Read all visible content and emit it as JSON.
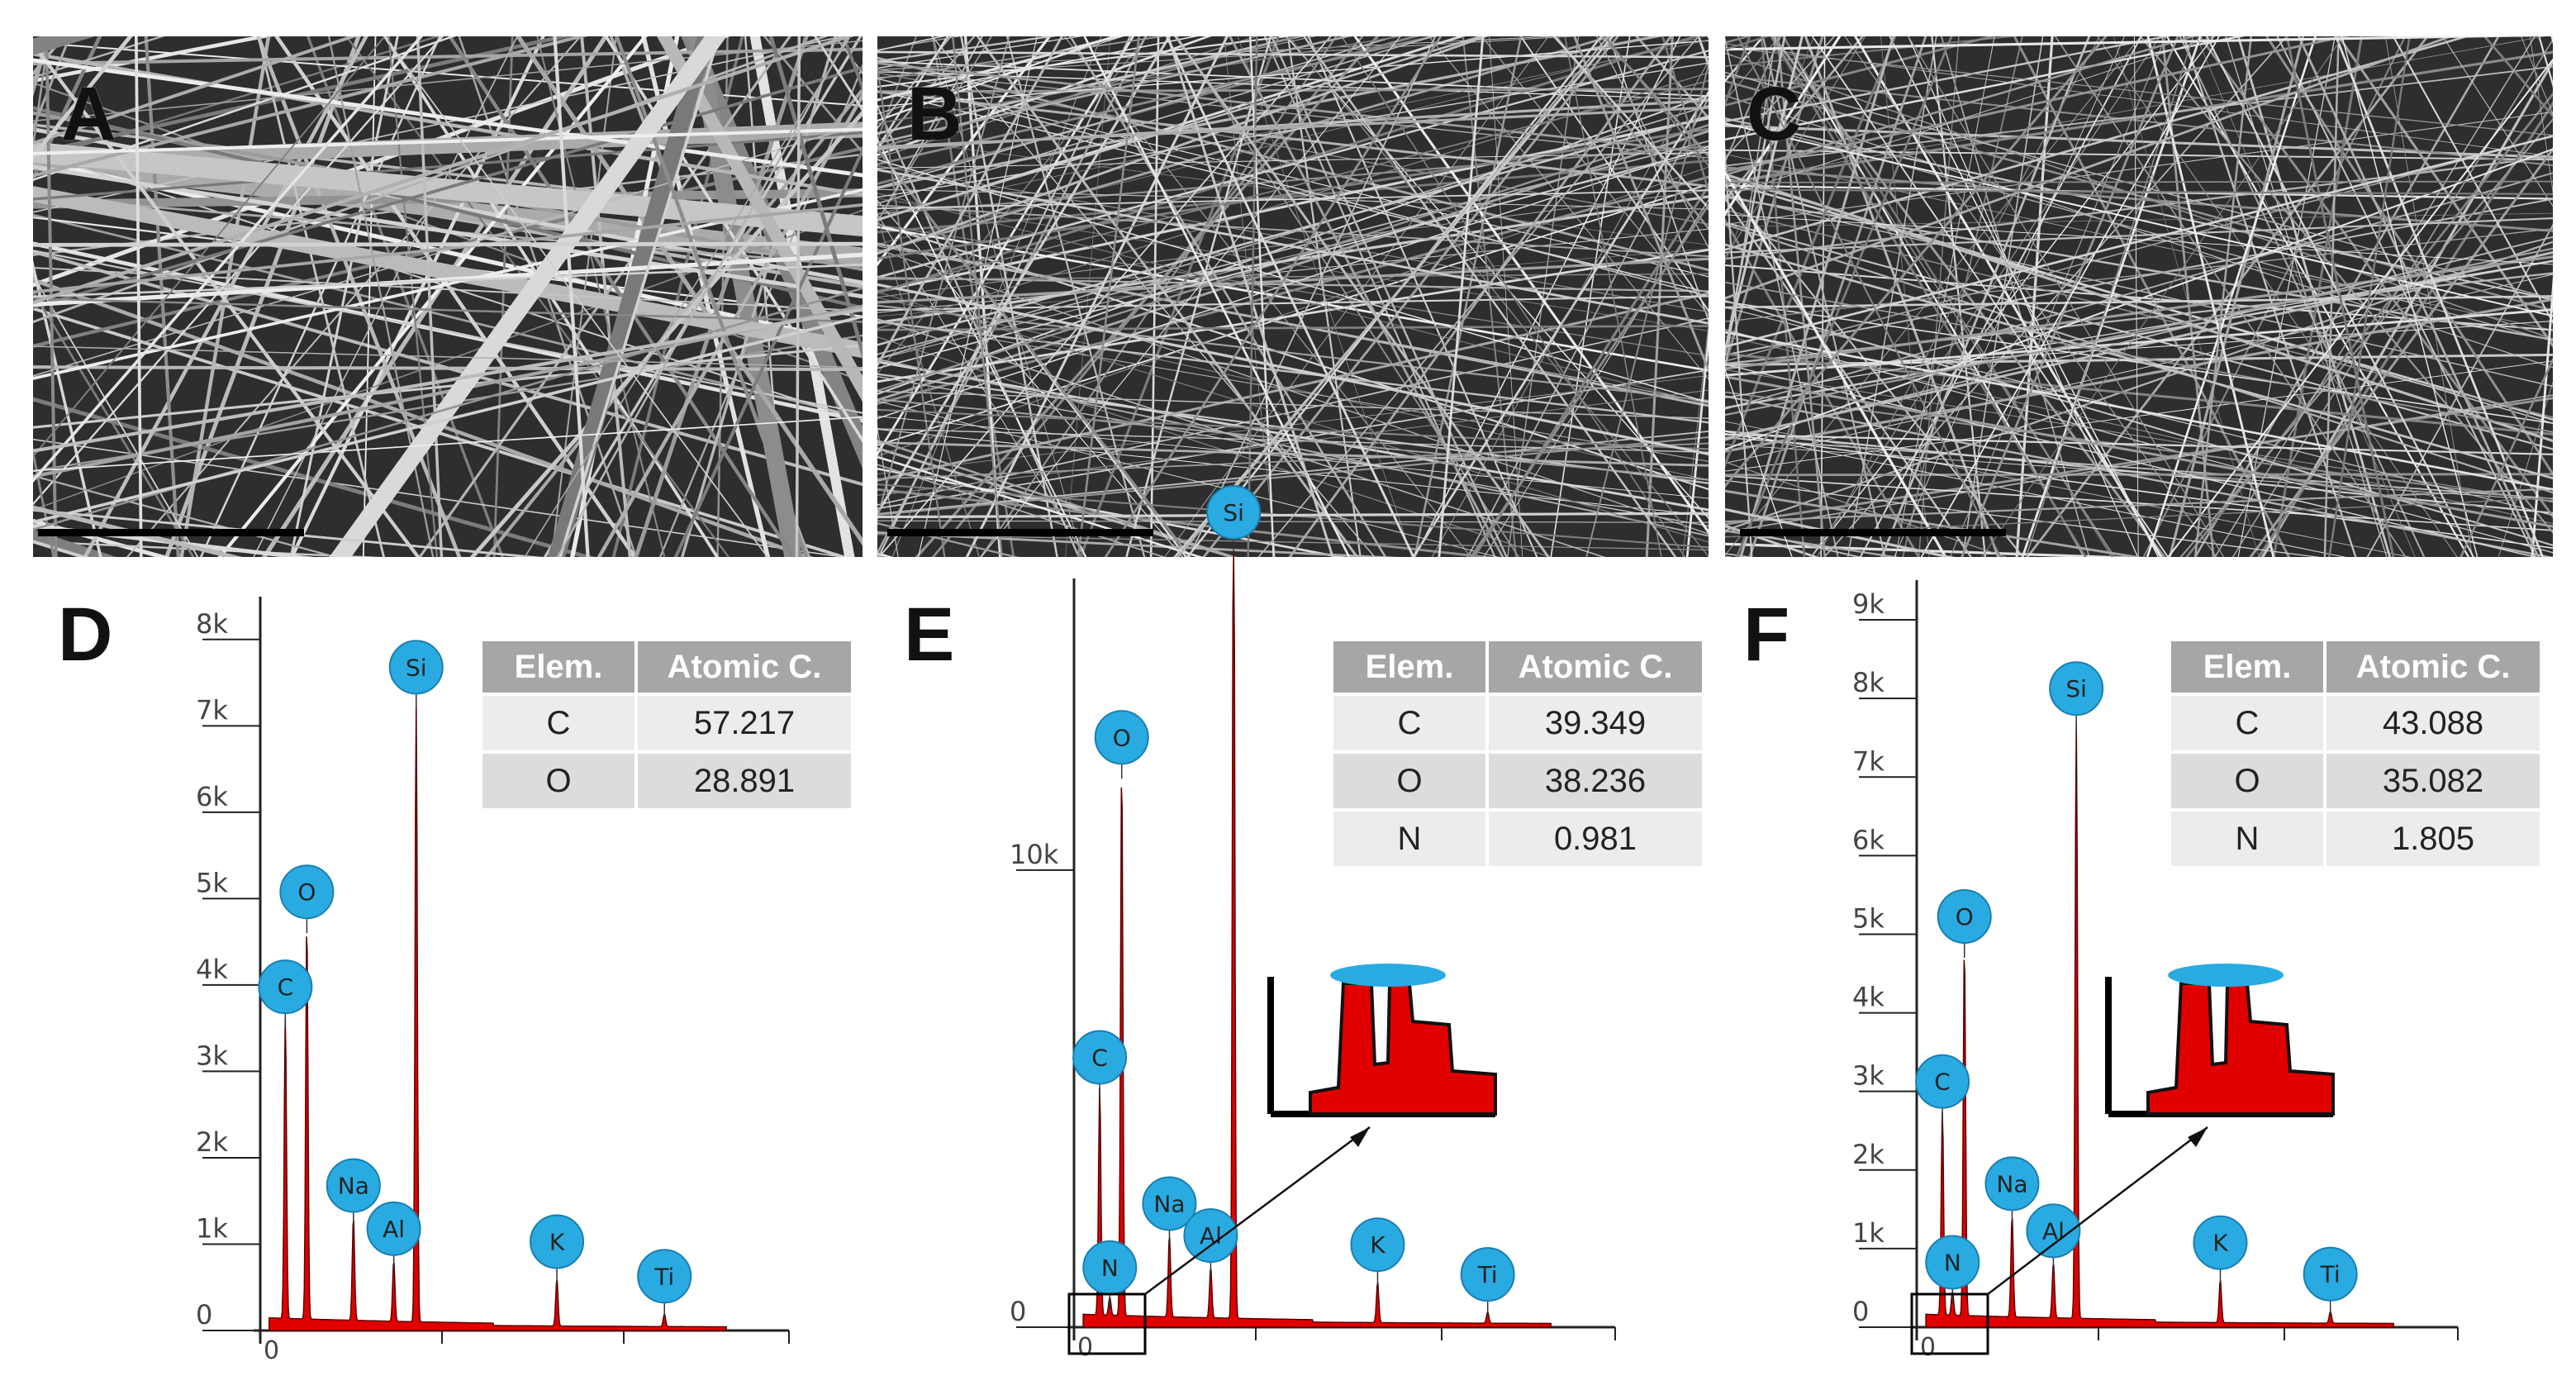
{
  "panels": {
    "A": {
      "label": "A"
    },
    "B": {
      "label": "B"
    },
    "C": {
      "label": "C"
    },
    "D": {
      "label": "D"
    },
    "E": {
      "label": "E"
    },
    "F": {
      "label": "F"
    }
  },
  "tables": {
    "D": {
      "headers": [
        "Elem.",
        "Atomic C."
      ],
      "rows": [
        [
          "C",
          "57.217"
        ],
        [
          "O",
          "28.891"
        ]
      ]
    },
    "E": {
      "headers": [
        "Elem.",
        "Atomic C."
      ],
      "rows": [
        [
          "C",
          "39.349"
        ],
        [
          "O",
          "38.236"
        ],
        [
          "N",
          "0.981"
        ]
      ]
    },
    "F": {
      "headers": [
        "Elem.",
        "Atomic C."
      ],
      "rows": [
        [
          "C",
          "43.088"
        ],
        [
          "O",
          "35.082"
        ],
        [
          "N",
          "1.805"
        ]
      ]
    }
  },
  "colors": {
    "spectrum_fill": "#e00000",
    "element_badge": "#29abe2",
    "sem_background": "#3a3a3a"
  },
  "chart_data": [
    {
      "panel": "D",
      "type": "area",
      "ylabel_ticks": [
        "0",
        "1k",
        "2k",
        "3k",
        "4k",
        "5k",
        "6k",
        "7k",
        "8k"
      ],
      "xlabel_ticks": [
        "0"
      ],
      "ylim": [
        0,
        8400
      ],
      "peaks": [
        {
          "element": "C",
          "x": 0.28,
          "counts": 3500
        },
        {
          "element": "O",
          "x": 0.52,
          "counts": 4600
        },
        {
          "element": "Na",
          "x": 1.04,
          "counts": 1200
        },
        {
          "element": "Al",
          "x": 1.49,
          "counts": 700
        },
        {
          "element": "Si",
          "x": 1.74,
          "counts": 7200
        },
        {
          "element": "K",
          "x": 3.31,
          "counts": 550
        },
        {
          "element": "Ti",
          "x": 4.51,
          "counts": 150
        }
      ]
    },
    {
      "panel": "E",
      "type": "area",
      "ylabel_ticks": [
        "0",
        "10k"
      ],
      "xlabel_ticks": [
        "0"
      ],
      "ylim": [
        0,
        16200
      ],
      "peaks": [
        {
          "element": "C",
          "x": 0.28,
          "counts": 5000
        },
        {
          "element": "N",
          "x": 0.39,
          "counts": 400
        },
        {
          "element": "O",
          "x": 0.52,
          "counts": 12000
        },
        {
          "element": "Na",
          "x": 1.04,
          "counts": 1800
        },
        {
          "element": "Al",
          "x": 1.49,
          "counts": 1100
        },
        {
          "element": "Si",
          "x": 1.74,
          "counts": 19000
        },
        {
          "element": "K",
          "x": 3.31,
          "counts": 900
        },
        {
          "element": "Ti",
          "x": 4.51,
          "counts": 250
        }
      ]
    },
    {
      "panel": "F",
      "type": "area",
      "ylabel_ticks": [
        "0",
        "1k",
        "2k",
        "3k",
        "4k",
        "5k",
        "6k",
        "7k",
        "8k",
        "9k"
      ],
      "xlabel_ticks": [
        "0"
      ],
      "ylim": [
        0,
        9400
      ],
      "peaks": [
        {
          "element": "C",
          "x": 0.28,
          "counts": 2600
        },
        {
          "element": "N",
          "x": 0.39,
          "counts": 300
        },
        {
          "element": "O",
          "x": 0.52,
          "counts": 4700
        },
        {
          "element": "Na",
          "x": 1.04,
          "counts": 1300
        },
        {
          "element": "Al",
          "x": 1.49,
          "counts": 700
        },
        {
          "element": "Si",
          "x": 1.74,
          "counts": 7600
        },
        {
          "element": "K",
          "x": 3.31,
          "counts": 550
        },
        {
          "element": "Ti",
          "x": 4.51,
          "counts": 150
        }
      ]
    }
  ]
}
